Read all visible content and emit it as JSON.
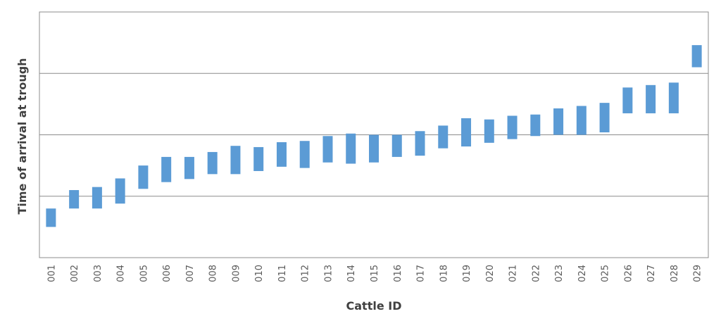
{
  "chart_data": {
    "type": "bar",
    "subtype": "floating-range",
    "title": "",
    "xlabel": "Cattle ID",
    "ylabel": "Time of arrival at trough",
    "ylim": [
      0,
      4
    ],
    "yticks": [
      0,
      1,
      2,
      3,
      4
    ],
    "show_y_tick_labels": false,
    "grid": true,
    "legend": "none",
    "bar_color": "#5b9bd5",
    "categories": [
      "001",
      "002",
      "003",
      "004",
      "005",
      "006",
      "007",
      "008",
      "009",
      "010",
      "011",
      "012",
      "013",
      "014",
      "015",
      "016",
      "017",
      "018",
      "019",
      "020",
      "021",
      "022",
      "023",
      "024",
      "025",
      "026",
      "027",
      "028",
      "029"
    ],
    "series": [
      {
        "low": [
          0.5,
          0.8,
          0.8,
          0.88,
          1.12,
          1.23,
          1.28,
          1.36,
          1.36,
          1.41,
          1.48,
          1.46,
          1.55,
          1.53,
          1.55,
          1.64,
          1.66,
          1.78,
          1.81,
          1.87,
          1.93,
          1.98,
          2.0,
          2.0,
          2.04,
          2.35,
          2.35,
          2.35,
          3.1
        ],
        "high": [
          0.8,
          1.1,
          1.15,
          1.29,
          1.5,
          1.64,
          1.64,
          1.72,
          1.82,
          1.8,
          1.88,
          1.9,
          1.98,
          2.02,
          2.0,
          2.0,
          2.06,
          2.15,
          2.27,
          2.25,
          2.31,
          2.33,
          2.43,
          2.47,
          2.52,
          2.77,
          2.81,
          2.85,
          3.46
        ]
      }
    ]
  }
}
